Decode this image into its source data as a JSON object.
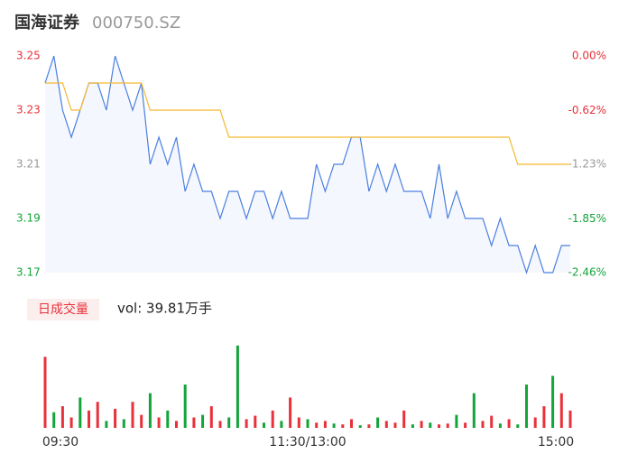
{
  "chart_data": [
    {
      "type": "line",
      "title": "国海证券",
      "subtitle": "000750.SZ",
      "x": [
        0,
        4,
        8,
        12,
        16,
        20,
        24,
        28,
        32,
        36,
        40,
        44,
        48,
        52,
        56,
        60,
        64,
        68,
        72,
        76,
        80,
        84,
        88,
        92,
        96,
        100,
        104,
        108,
        112,
        116,
        120,
        124,
        128,
        132,
        136,
        140,
        144,
        148,
        152,
        156,
        160,
        164,
        168,
        172,
        176,
        180,
        184,
        188,
        192,
        196,
        200,
        204,
        208,
        212,
        216,
        220,
        224,
        228,
        232,
        236,
        240
      ],
      "xlim": [
        0,
        240
      ],
      "ylim": [
        3.17,
        3.25
      ],
      "yticks": [
        3.25,
        3.23,
        3.21,
        3.19,
        3.17
      ],
      "y2lim": [
        -2.46,
        0
      ],
      "y2ticks": [
        {
          "value": 0,
          "label": "0.00%"
        },
        {
          "value": -0.62,
          "label": "-0.62%"
        },
        {
          "value": -1.23,
          "label": "-1.23%"
        },
        {
          "value": -1.85,
          "label": "-1.85%"
        },
        {
          "value": -2.46,
          "label": "-2.46%"
        }
      ],
      "up_color": "#e8313a",
      "flat_color": "#999999",
      "down_color": "#13a43a",
      "series": [
        {
          "color": "#4a7fe0",
          "values": [
            3.24,
            3.25,
            3.23,
            3.22,
            3.23,
            3.24,
            3.24,
            3.23,
            3.25,
            3.24,
            3.23,
            3.24,
            3.21,
            3.22,
            3.21,
            3.22,
            3.2,
            3.21,
            3.2,
            3.2,
            3.19,
            3.2,
            3.2,
            3.19,
            3.2,
            3.2,
            3.19,
            3.2,
            3.19,
            3.19,
            3.19,
            3.21,
            3.2,
            3.21,
            3.21,
            3.22,
            3.22,
            3.2,
            3.21,
            3.2,
            3.21,
            3.2,
            3.2,
            3.2,
            3.19,
            3.21,
            3.19,
            3.2,
            3.19,
            3.19,
            3.19,
            3.18,
            3.19,
            3.18,
            3.18,
            3.17,
            3.18,
            3.17,
            3.17,
            3.18,
            3.18
          ]
        },
        {
          "color": "#f5b731",
          "values": [
            3.24,
            3.24,
            3.24,
            3.23,
            3.23,
            3.24,
            3.24,
            3.24,
            3.24,
            3.24,
            3.24,
            3.24,
            3.23,
            3.23,
            3.23,
            3.23,
            3.23,
            3.23,
            3.23,
            3.23,
            3.23,
            3.22,
            3.22,
            3.22,
            3.22,
            3.22,
            3.22,
            3.22,
            3.22,
            3.22,
            3.22,
            3.22,
            3.22,
            3.22,
            3.22,
            3.22,
            3.22,
            3.22,
            3.22,
            3.22,
            3.22,
            3.22,
            3.22,
            3.22,
            3.22,
            3.22,
            3.22,
            3.22,
            3.22,
            3.22,
            3.22,
            3.22,
            3.22,
            3.22,
            3.21,
            3.21,
            3.21,
            3.21,
            3.21,
            3.21,
            3.21
          ]
        }
      ]
    },
    {
      "type": "bar",
      "label": "日成交量",
      "annotation": "vol: 39.81万手",
      "xlim": [
        0,
        240
      ],
      "xticks": [
        {
          "value": 0,
          "label": "09:30"
        },
        {
          "value": 120,
          "label": "11:30/13:00"
        },
        {
          "value": 240,
          "label": "15:00"
        }
      ],
      "ylim": [
        0,
        100
      ],
      "values": [
        82,
        18,
        25,
        12,
        35,
        20,
        30,
        8,
        22,
        10,
        30,
        15,
        40,
        12,
        20,
        8,
        50,
        12,
        15,
        25,
        8,
        12,
        95,
        10,
        14,
        6,
        20,
        8,
        35,
        12,
        10,
        6,
        8,
        5,
        4,
        10,
        3,
        4,
        12,
        8,
        6,
        20,
        4,
        8,
        6,
        4,
        5,
        15,
        6,
        40,
        8,
        14,
        5,
        10,
        4,
        50,
        12,
        25,
        60,
        40,
        20
      ],
      "colors": [
        "#e8313a",
        "#13a43a",
        "#e8313a",
        "#e8313a",
        "#13a43a",
        "#e8313a",
        "#e8313a",
        "#13a43a",
        "#e8313a",
        "#13a43a",
        "#e8313a",
        "#e8313a",
        "#13a43a",
        "#e8313a",
        "#13a43a",
        "#e8313a",
        "#13a43a",
        "#e8313a",
        "#13a43a",
        "#e8313a",
        "#e8313a",
        "#13a43a",
        "#13a43a",
        "#e8313a",
        "#e8313a",
        "#13a43a",
        "#e8313a",
        "#13a43a",
        "#e8313a",
        "#e8313a",
        "#13a43a",
        "#e8313a",
        "#e8313a",
        "#13a43a",
        "#e8313a",
        "#e8313a",
        "#13a43a",
        "#e8313a",
        "#13a43a",
        "#e8313a",
        "#e8313a",
        "#e8313a",
        "#13a43a",
        "#e8313a",
        "#13a43a",
        "#e8313a",
        "#e8313a",
        "#13a43a",
        "#e8313a",
        "#13a43a",
        "#e8313a",
        "#e8313a",
        "#13a43a",
        "#e8313a",
        "#13a43a",
        "#13a43a",
        "#e8313a",
        "#e8313a",
        "#13a43a",
        "#e8313a",
        "#e8313a"
      ]
    }
  ]
}
